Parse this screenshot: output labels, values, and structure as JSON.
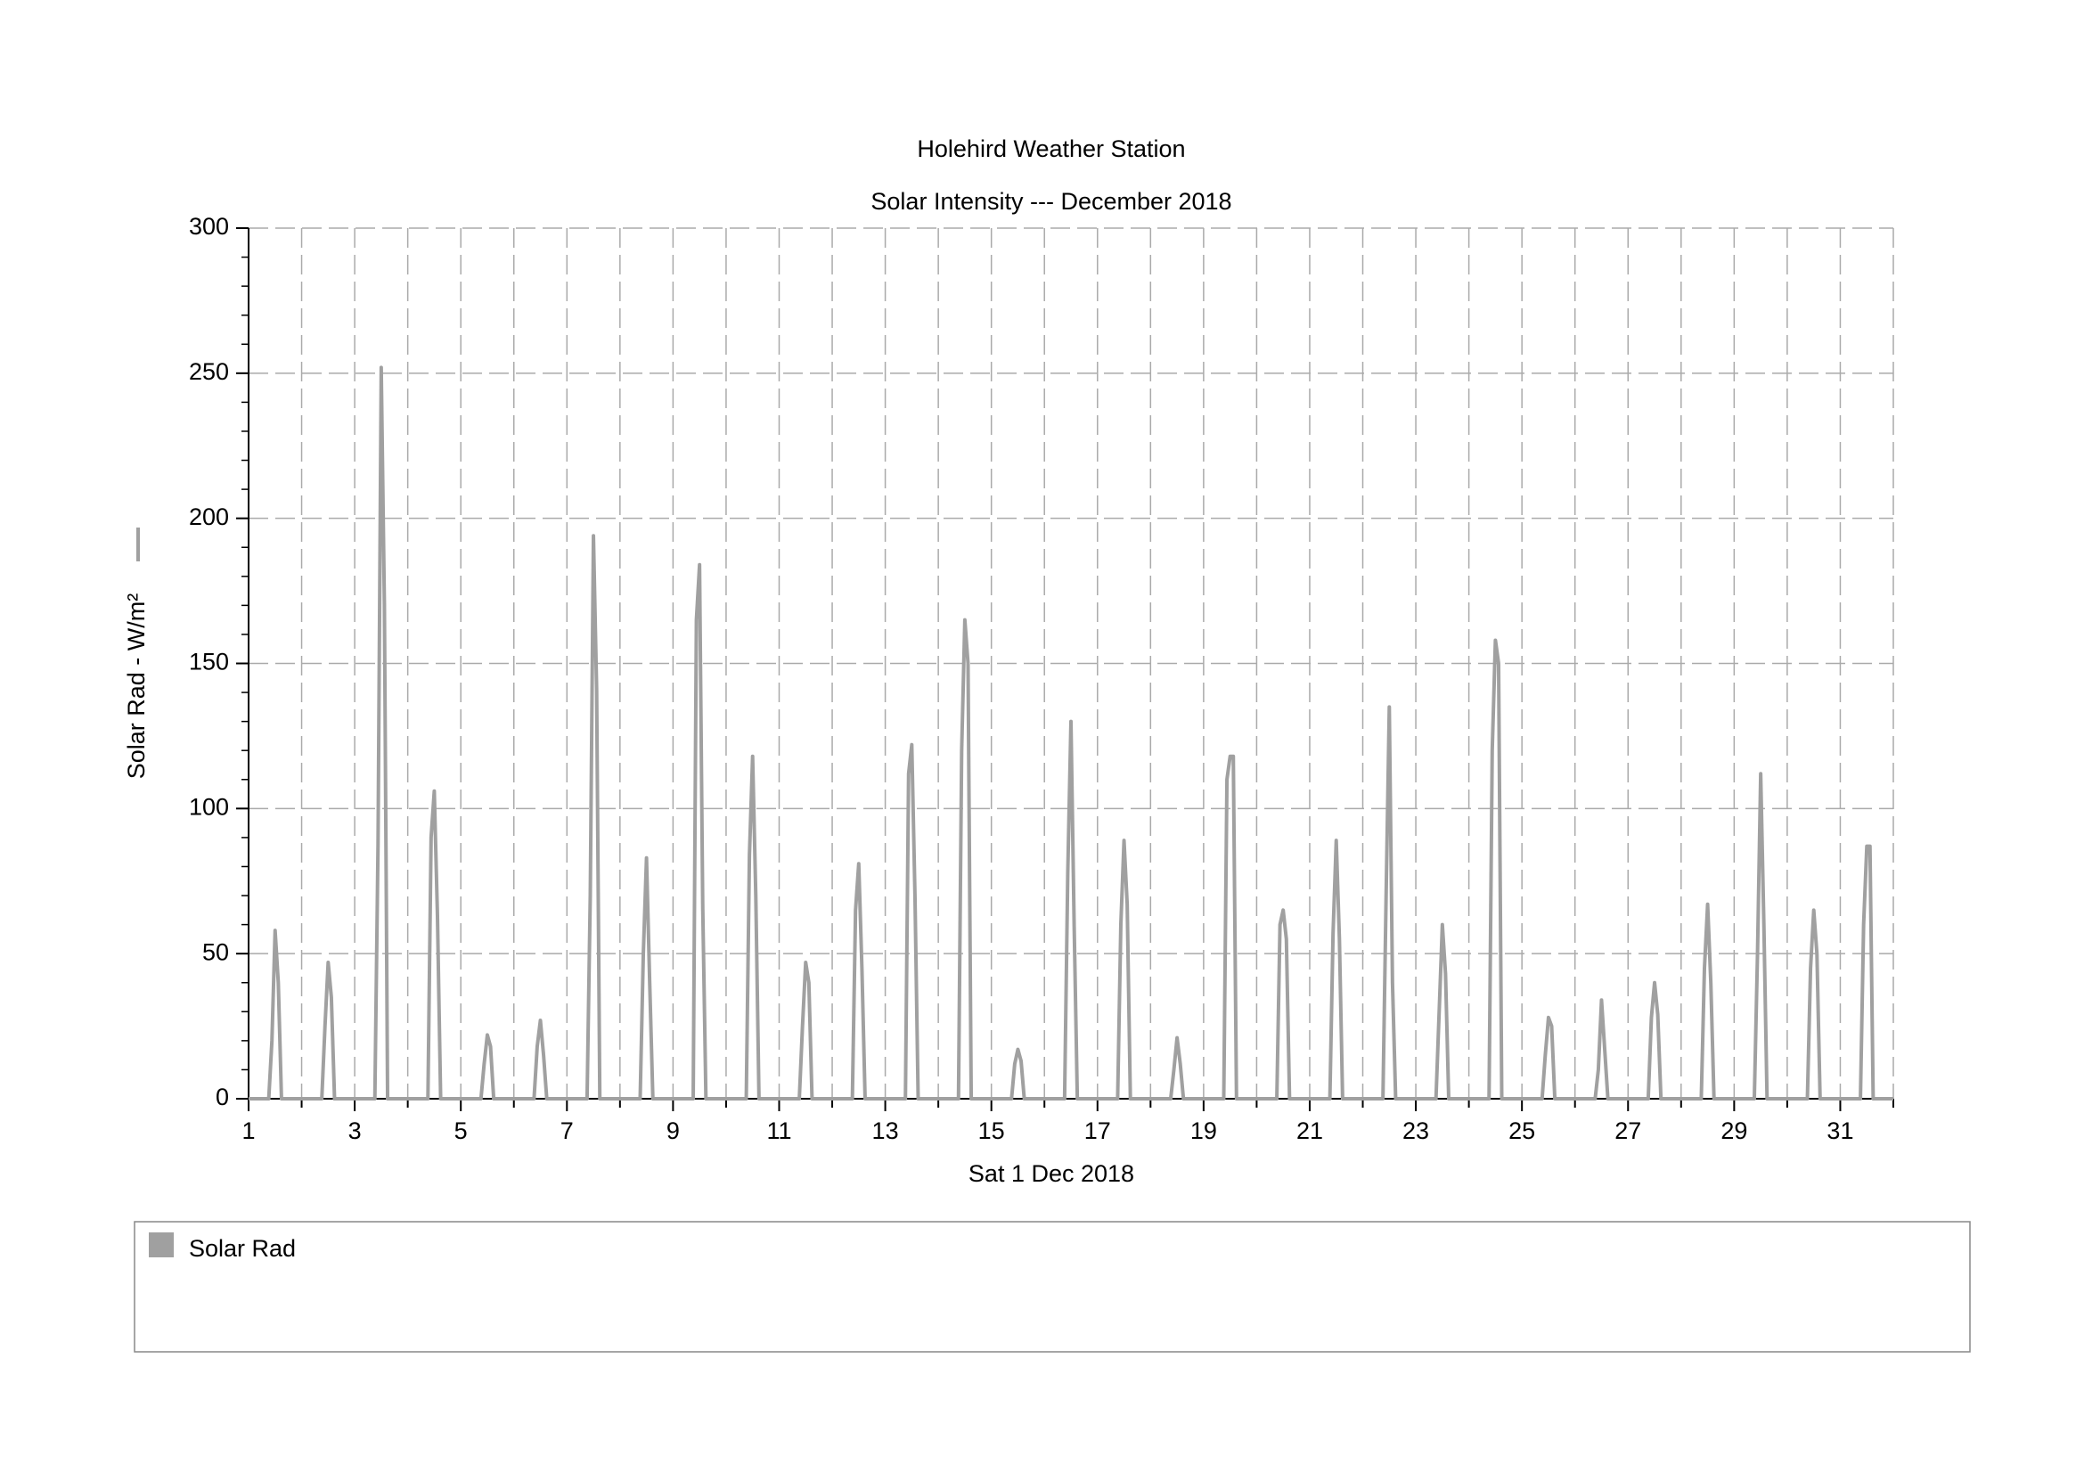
{
  "chart_data": {
    "type": "line",
    "title": "Holehird Weather Station",
    "subtitle": "Solar Intensity --- December 2018",
    "xlabel": "Sat 1 Dec 2018",
    "ylabel": "Solar Rad - W/m²",
    "x": [
      1,
      1.38,
      1.44,
      1.5,
      1.56,
      1.62,
      2.38,
      2.44,
      2.5,
      2.56,
      2.62,
      3.38,
      3.44,
      3.5,
      3.56,
      3.62,
      4.38,
      4.44,
      4.5,
      4.56,
      4.62,
      5.38,
      5.44,
      5.5,
      5.56,
      5.62,
      6.38,
      6.44,
      6.5,
      6.56,
      6.62,
      7.38,
      7.44,
      7.5,
      7.56,
      7.62,
      8.38,
      8.44,
      8.5,
      8.56,
      8.62,
      9.38,
      9.44,
      9.5,
      9.56,
      9.62,
      10.38,
      10.44,
      10.5,
      10.56,
      10.62,
      11.38,
      11.44,
      11.5,
      11.56,
      11.62,
      12.38,
      12.44,
      12.5,
      12.56,
      12.62,
      13.38,
      13.44,
      13.5,
      13.56,
      13.62,
      14.38,
      14.44,
      14.5,
      14.56,
      14.62,
      15.38,
      15.44,
      15.5,
      15.56,
      15.62,
      16.38,
      16.44,
      16.5,
      16.56,
      16.62,
      17.38,
      17.44,
      17.5,
      17.56,
      17.62,
      18.38,
      18.44,
      18.5,
      18.56,
      18.62,
      19.38,
      19.44,
      19.5,
      19.56,
      19.62,
      20.38,
      20.44,
      20.5,
      20.56,
      20.62,
      21.38,
      21.44,
      21.5,
      21.56,
      21.62,
      22.38,
      22.44,
      22.5,
      22.56,
      22.62,
      23.38,
      23.44,
      23.5,
      23.56,
      23.62,
      24.38,
      24.44,
      24.5,
      24.56,
      24.62,
      25.38,
      25.44,
      25.5,
      25.56,
      25.62,
      26.38,
      26.44,
      26.5,
      26.56,
      26.62,
      27.38,
      27.44,
      27.5,
      27.56,
      27.62,
      28.38,
      28.44,
      28.5,
      28.56,
      28.62,
      29.38,
      29.44,
      29.5,
      29.56,
      29.62,
      30.38,
      30.44,
      30.5,
      30.56,
      30.62,
      31.38,
      31.44,
      31.5,
      31.56,
      31.62,
      32
    ],
    "series": [
      {
        "name": "Solar Rad",
        "color": "#a0a0a0",
        "values": [
          0,
          0,
          20,
          58,
          40,
          0,
          0,
          25,
          47,
          35,
          0,
          0,
          88,
          252,
          170,
          0,
          0,
          90,
          106,
          63,
          0,
          0,
          12,
          22,
          18,
          0,
          0,
          18,
          27,
          15,
          0,
          0,
          70,
          194,
          141,
          0,
          0,
          50,
          83,
          40,
          0,
          0,
          165,
          184,
          66,
          0,
          0,
          84,
          118,
          70,
          0,
          0,
          25,
          47,
          40,
          0,
          0,
          65,
          81,
          45,
          0,
          0,
          112,
          122,
          70,
          0,
          0,
          120,
          165,
          150,
          0,
          0,
          12,
          17,
          13,
          0,
          0,
          78,
          130,
          60,
          0,
          0,
          60,
          89,
          67,
          0,
          0,
          10,
          21,
          12,
          0,
          0,
          110,
          118,
          118,
          0,
          0,
          60,
          65,
          55,
          0,
          0,
          57,
          89,
          55,
          0,
          0,
          70,
          135,
          40,
          0,
          0,
          30,
          60,
          43,
          0,
          0,
          120,
          158,
          150,
          0,
          0,
          15,
          28,
          25,
          0,
          0,
          10,
          34,
          17,
          0,
          0,
          28,
          40,
          29,
          0,
          0,
          45,
          67,
          40,
          0,
          0,
          50,
          112,
          60,
          0,
          0,
          45,
          65,
          50,
          0,
          0,
          60,
          87,
          87,
          0,
          0
        ]
      }
    ],
    "xlim": [
      1,
      32
    ],
    "xticks": [
      1,
      3,
      5,
      7,
      9,
      11,
      13,
      15,
      17,
      19,
      21,
      23,
      25,
      27,
      29,
      31
    ],
    "xminor_ticks": [
      2,
      4,
      6,
      8,
      10,
      12,
      14,
      16,
      18,
      20,
      22,
      24,
      26,
      28,
      30,
      32
    ],
    "ylim": [
      0,
      300
    ],
    "yticks": [
      0,
      50,
      100,
      150,
      200,
      250,
      300
    ],
    "yminor_ticks": [
      10,
      20,
      30,
      40,
      60,
      70,
      80,
      90,
      110,
      120,
      130,
      140,
      160,
      170,
      180,
      190,
      210,
      220,
      230,
      240,
      260,
      270,
      280,
      290
    ],
    "grid": true
  }
}
